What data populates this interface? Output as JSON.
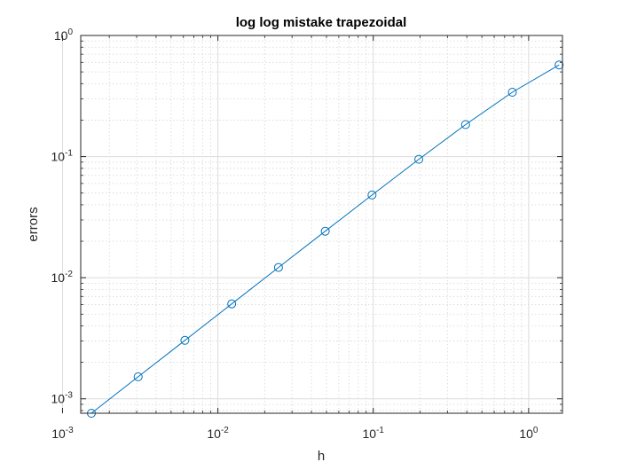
{
  "chart_data": {
    "type": "line",
    "title": "log log mistake trapezoidal",
    "xlabel": "h",
    "ylabel": "errors",
    "x_scale": "log",
    "y_scale": "log",
    "xlim": [
      0.00131,
      1.65
    ],
    "ylim": [
      0.00076,
      1.0
    ],
    "grid": true,
    "minor_grid": true,
    "marker": "circle",
    "series_color": "#0072bd",
    "x_ticks": [
      {
        "value": 0.001,
        "base": "10",
        "exp": "-3"
      },
      {
        "value": 0.01,
        "base": "10",
        "exp": "-2"
      },
      {
        "value": 0.1,
        "base": "10",
        "exp": "-1"
      },
      {
        "value": 1,
        "base": "10",
        "exp": "0"
      }
    ],
    "y_ticks": [
      {
        "value": 0.001,
        "base": "10",
        "exp": "-3"
      },
      {
        "value": 0.01,
        "base": "10",
        "exp": "-2"
      },
      {
        "value": 0.1,
        "base": "10",
        "exp": "-1"
      },
      {
        "value": 1,
        "base": "10",
        "exp": "0"
      }
    ],
    "series": [
      {
        "x": [
          1.5708,
          0.7854,
          0.3927,
          0.19635,
          0.098175,
          0.049087,
          0.024544,
          0.012272,
          0.006136,
          0.003068,
          0.001534
        ],
        "y": [
          0.571,
          0.34,
          0.1837,
          0.095,
          0.0482,
          0.0242,
          0.01215,
          0.00608,
          0.00304,
          0.00152,
          0.00076
        ]
      }
    ]
  }
}
